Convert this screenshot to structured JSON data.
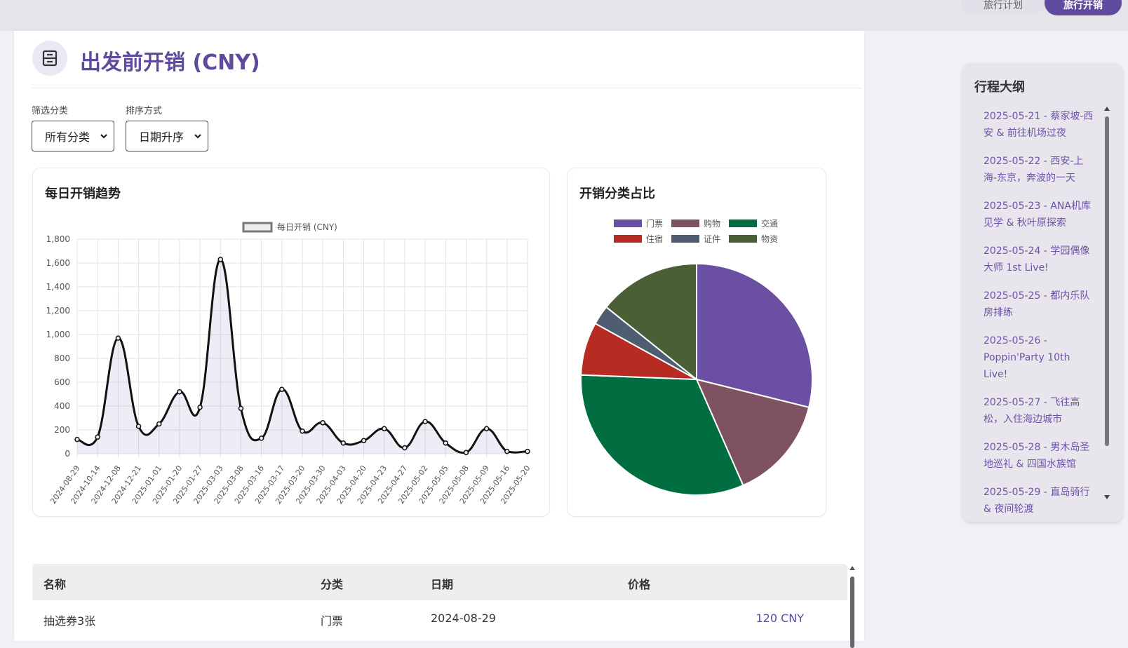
{
  "nav": {
    "tabs": [
      {
        "label": "旅行计划",
        "active": false
      },
      {
        "label": "旅行开销",
        "active": true
      }
    ]
  },
  "header": {
    "icon": "calculator-icon",
    "title": "出发前开销 (CNY)"
  },
  "filters": {
    "category_label": "筛选分类",
    "category_value": "所有分类",
    "sort_label": "排序方式",
    "sort_value": "日期升序"
  },
  "trend_panel": {
    "title": "每日开销趋势"
  },
  "pie_panel": {
    "title": "开销分类占比"
  },
  "colors": {
    "accent": "#5f4a9e",
    "門票": "#6a4fa3",
    "购物": "#7e5260",
    "交通": "#006e40",
    "住宿": "#b62b22",
    "证件": "#4f5d70",
    "物资": "#4b5f37"
  },
  "chart_data": [
    {
      "type": "line",
      "title": "",
      "legend": [
        "每日开销 (CNY)"
      ],
      "legend_position": "top",
      "grid": true,
      "fill": true,
      "ylim": [
        0,
        1800
      ],
      "yticks": [
        "0",
        "200",
        "400",
        "600",
        "800",
        "1,000",
        "1,200",
        "1,400",
        "1,600",
        "1,800"
      ],
      "categories": [
        "2024-08-29",
        "2024-10-14",
        "2024-12-08",
        "2024-12-21",
        "2025-01-01",
        "2025-01-20",
        "2025-01-27",
        "2025-03-03",
        "2025-03-08",
        "2025-03-16",
        "2025-03-17",
        "2025-03-20",
        "2025-03-30",
        "2025-04-03",
        "2025-04-20",
        "2025-04-23",
        "2025-04-27",
        "2025-05-02",
        "2025-05-05",
        "2025-05-08",
        "2025-05-09",
        "2025-05-16",
        "2025-05-20"
      ],
      "series": [
        {
          "name": "每日开销 (CNY)",
          "values": [
            120,
            140,
            970,
            230,
            250,
            520,
            390,
            1630,
            380,
            130,
            540,
            190,
            260,
            90,
            110,
            210,
            50,
            270,
            90,
            10,
            210,
            20,
            20
          ]
        }
      ]
    },
    {
      "type": "pie",
      "title": "",
      "legend_position": "top",
      "labels": [
        "门票",
        "购物",
        "交通",
        "住宿",
        "证件",
        "物资"
      ],
      "colors": [
        "#6a4fa3",
        "#7e5260",
        "#006e40",
        "#b62b22",
        "#4f5d70",
        "#4b5f37"
      ],
      "values": [
        29.6,
        14.9,
        33.0,
        7.6,
        2.8,
        14.6
      ]
    }
  ],
  "table": {
    "headers": [
      "名称",
      "分类",
      "日期",
      "价格"
    ],
    "rows": [
      {
        "name": "抽选券3张",
        "category": "门票",
        "date": "2024-08-29",
        "price": "120 CNY"
      }
    ]
  },
  "outline": {
    "title": "行程大纲",
    "items": [
      "2025-05-21 - 蔡家坡-西安 & 前往机场过夜",
      "2025-05-22 - 西安-上海-东京，奔波的一天",
      "2025-05-23 - ANA机库见学 & 秋叶原探索",
      "2025-05-24 - 学园偶像大师 1st Live!",
      "2025-05-25 - 都内乐队房排练",
      "2025-05-26 - Poppin'Party 10th Live!",
      "2025-05-27 - 飞往高松，入住海边城市",
      "2025-05-28 - 男木岛圣地巡礼 & 四国水族馆",
      "2025-05-29 - 直岛骑行 & 夜间轮渡"
    ]
  }
}
